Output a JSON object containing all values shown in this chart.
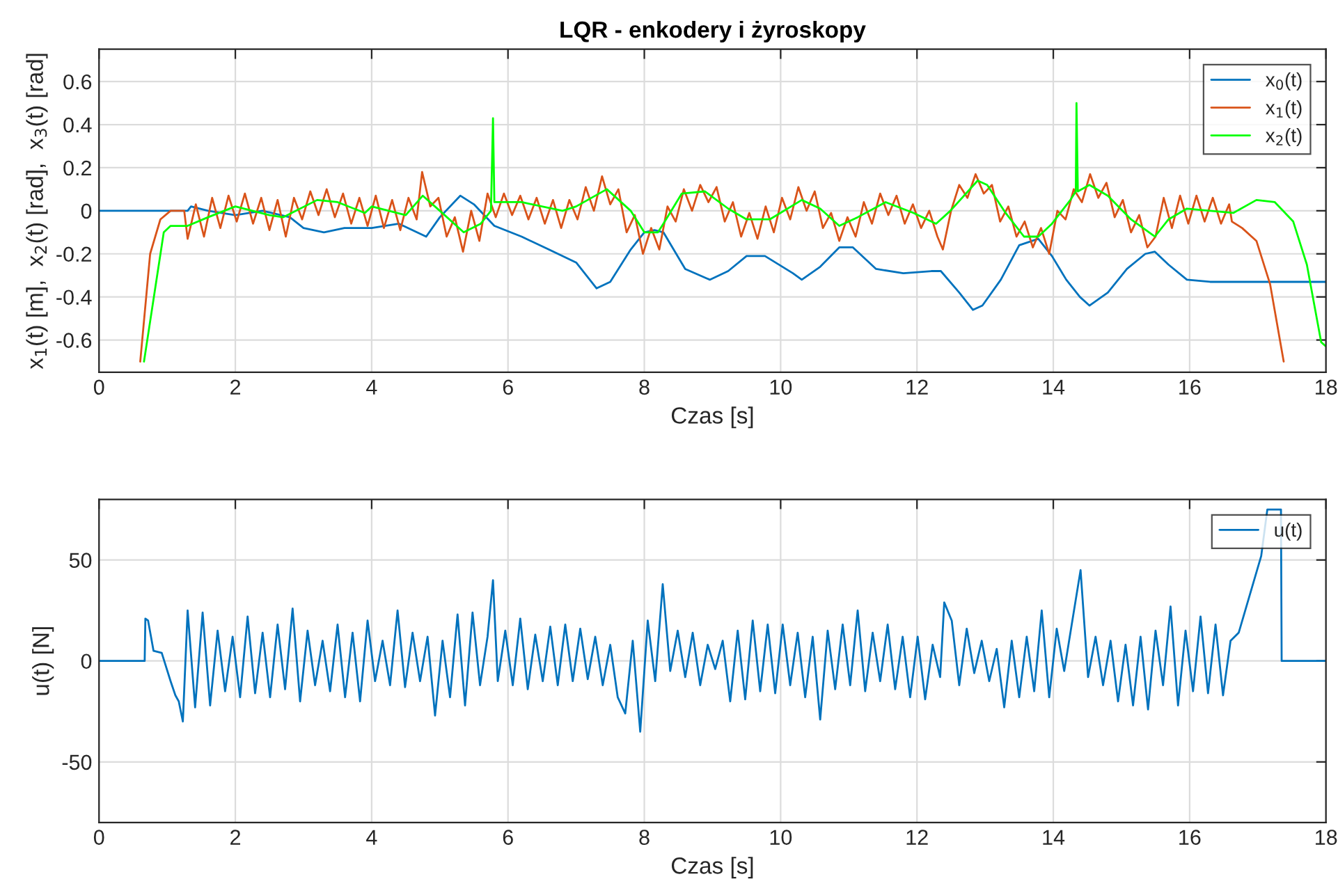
{
  "chart_data": [
    {
      "type": "line",
      "title": "LQR - enkodery i żyroskopy",
      "xlabel": "Czas [s]",
      "ylabel": "x$_{1}$(t) [m],  x$_{2}$(t) [rad],  x$_{3}$(t) [rad]",
      "xlim": [
        0,
        18
      ],
      "xticks": [
        0,
        2,
        4,
        6,
        8,
        10,
        12,
        14,
        16,
        18
      ],
      "ylim": [
        -0.75,
        0.75
      ],
      "yticks": [
        -0.6,
        -0.4,
        -0.2,
        0,
        0.2,
        0.4,
        0.6
      ],
      "grid": true,
      "legend": "top right",
      "series": [
        {
          "name": "x$_{0}$(t)",
          "color": "#0072bd",
          "x": [
            0,
            1.3,
            1.35,
            1.6,
            2.0,
            2.4,
            2.8,
            3.0,
            3.3,
            3.6,
            4.0,
            4.4,
            4.8,
            5.0,
            5.3,
            5.5,
            5.8,
            6.2,
            6.6,
            7.0,
            7.3,
            7.5,
            7.8,
            8.0,
            8.15,
            8.28,
            8.6,
            8.96,
            9.23,
            9.5,
            9.77,
            10.18,
            10.31,
            10.58,
            10.86,
            11.06,
            11.4,
            11.8,
            12.21,
            12.35,
            12.62,
            12.82,
            12.96,
            13.23,
            13.5,
            13.78,
            13.98,
            14.19,
            14.39,
            14.53,
            14.8,
            15.08,
            15.35,
            15.49,
            15.69,
            15.96,
            16.3,
            16.5,
            18
          ],
          "values": [
            0,
            0,
            0.02,
            0.0,
            -0.02,
            0.0,
            -0.03,
            -0.08,
            -0.1,
            -0.08,
            -0.08,
            -0.06,
            -0.12,
            -0.03,
            0.07,
            0.03,
            -0.07,
            -0.12,
            -0.18,
            -0.24,
            -0.36,
            -0.33,
            -0.18,
            -0.1,
            -0.09,
            -0.1,
            -0.27,
            -0.32,
            -0.28,
            -0.21,
            -0.21,
            -0.29,
            -0.32,
            -0.26,
            -0.17,
            -0.17,
            -0.27,
            -0.29,
            -0.28,
            -0.28,
            -0.38,
            -0.46,
            -0.44,
            -0.32,
            -0.16,
            -0.13,
            -0.21,
            -0.32,
            -0.4,
            -0.44,
            -0.38,
            -0.27,
            -0.2,
            -0.19,
            -0.25,
            -0.32,
            -0.33,
            -0.33,
            -0.33
          ]
        },
        {
          "name": "x$_{1}$(t)",
          "color": "#d95319",
          "x": [
            0.605,
            0.75,
            0.9,
            1.05,
            1.25,
            1.3,
            1.42,
            1.54,
            1.66,
            1.78,
            1.9,
            2.02,
            2.14,
            2.26,
            2.38,
            2.5,
            2.62,
            2.74,
            2.86,
            2.98,
            3.1,
            3.22,
            3.34,
            3.46,
            3.58,
            3.7,
            3.82,
            3.94,
            4.06,
            4.18,
            4.3,
            4.42,
            4.54,
            4.66,
            4.74,
            4.86,
            4.98,
            5.1,
            5.22,
            5.34,
            5.46,
            5.58,
            5.7,
            5.82,
            5.94,
            6.06,
            6.18,
            6.3,
            6.42,
            6.54,
            6.66,
            6.78,
            6.9,
            7.02,
            7.14,
            7.26,
            7.38,
            7.5,
            7.62,
            7.74,
            7.86,
            7.98,
            8.1,
            8.22,
            8.34,
            8.46,
            8.58,
            8.7,
            8.82,
            8.94,
            9.06,
            9.18,
            9.3,
            9.42,
            9.54,
            9.66,
            9.78,
            9.9,
            10.02,
            10.14,
            10.26,
            10.38,
            10.5,
            10.62,
            10.74,
            10.86,
            10.98,
            11.1,
            11.22,
            11.34,
            11.46,
            11.58,
            11.7,
            11.82,
            11.94,
            12.06,
            12.18,
            12.3,
            12.38,
            12.5,
            12.62,
            12.74,
            12.86,
            12.98,
            13.1,
            13.22,
            13.34,
            13.46,
            13.58,
            13.7,
            13.82,
            13.94,
            14.06,
            14.18,
            14.3,
            14.42,
            14.54,
            14.66,
            14.78,
            14.9,
            15.02,
            15.14,
            15.26,
            15.38,
            15.5,
            15.62,
            15.74,
            15.86,
            15.98,
            16.1,
            16.22,
            16.34,
            16.46,
            16.58,
            16.62,
            16.77,
            16.98,
            17.18,
            17.38
          ],
          "values": [
            -0.7,
            -0.2,
            -0.04,
            0.0,
            0.0,
            -0.13,
            0.03,
            -0.12,
            0.06,
            -0.08,
            0.07,
            -0.05,
            0.08,
            -0.06,
            0.06,
            -0.09,
            0.05,
            -0.12,
            0.06,
            -0.04,
            0.09,
            -0.02,
            0.1,
            -0.03,
            0.08,
            -0.06,
            0.06,
            -0.07,
            0.07,
            -0.08,
            0.05,
            -0.09,
            0.06,
            -0.04,
            0.18,
            0.02,
            0.06,
            -0.12,
            -0.03,
            -0.19,
            0.0,
            -0.14,
            0.08,
            -0.03,
            0.08,
            -0.02,
            0.07,
            -0.04,
            0.06,
            -0.06,
            0.05,
            -0.08,
            0.05,
            -0.04,
            0.11,
            0.0,
            0.16,
            0.03,
            0.1,
            -0.1,
            -0.02,
            -0.2,
            -0.08,
            -0.18,
            0.02,
            -0.05,
            0.1,
            0.0,
            0.12,
            0.04,
            0.11,
            -0.05,
            0.04,
            -0.12,
            -0.01,
            -0.13,
            0.02,
            -0.1,
            0.06,
            -0.04,
            0.11,
            0.0,
            0.09,
            -0.08,
            -0.01,
            -0.14,
            -0.03,
            -0.12,
            0.04,
            -0.06,
            0.08,
            -0.02,
            0.07,
            -0.06,
            0.03,
            -0.08,
            0.0,
            -0.12,
            -0.18,
            0.0,
            0.12,
            0.06,
            0.17,
            0.08,
            0.12,
            -0.05,
            0.02,
            -0.12,
            -0.05,
            -0.17,
            -0.08,
            -0.2,
            0.0,
            -0.04,
            0.1,
            0.04,
            0.17,
            0.06,
            0.13,
            -0.03,
            0.05,
            -0.1,
            -0.02,
            -0.17,
            -0.12,
            0.06,
            -0.08,
            0.07,
            -0.06,
            0.07,
            -0.05,
            0.06,
            -0.06,
            0.03,
            -0.05,
            -0.08,
            -0.14,
            -0.34,
            -0.7
          ]
        },
        {
          "name": "x$_{2}$(t)",
          "color": "#00ff00",
          "x": [
            0.66,
            0.95,
            1.05,
            1.3,
            1.6,
            2.0,
            2.5,
            2.7,
            3.2,
            3.5,
            3.9,
            4.0,
            4.5,
            4.75,
            5.0,
            5.35,
            5.6,
            5.75,
            5.78,
            5.8,
            6.2,
            6.8,
            7.0,
            7.45,
            7.8,
            8.0,
            8.2,
            8.3,
            8.55,
            8.89,
            9.23,
            9.5,
            9.84,
            10.31,
            10.58,
            10.86,
            11.13,
            11.54,
            11.95,
            12.28,
            12.49,
            12.89,
            13.03,
            13.3,
            13.57,
            13.78,
            13.98,
            14.25,
            14.33,
            14.34,
            14.36,
            14.53,
            14.8,
            15.14,
            15.49,
            15.69,
            15.96,
            16.3,
            16.64,
            16.98,
            17.25,
            17.52,
            17.72,
            17.93,
            18
          ],
          "values": [
            -0.7,
            -0.1,
            -0.07,
            -0.07,
            -0.03,
            0.02,
            -0.02,
            -0.03,
            0.05,
            0.04,
            -0.01,
            0.02,
            -0.02,
            0.07,
            0.0,
            -0.1,
            -0.06,
            0.0,
            0.43,
            0.04,
            0.04,
            0.0,
            0.02,
            0.1,
            0.0,
            -0.1,
            -0.1,
            -0.05,
            0.08,
            0.09,
            0.01,
            -0.04,
            -0.04,
            0.05,
            0.01,
            -0.07,
            -0.03,
            0.04,
            -0.01,
            -0.06,
            0.0,
            0.14,
            0.12,
            -0.01,
            -0.12,
            -0.12,
            -0.06,
            0.05,
            0.09,
            0.5,
            0.09,
            0.12,
            0.07,
            -0.04,
            -0.12,
            -0.04,
            0.01,
            0.0,
            -0.01,
            0.05,
            0.04,
            -0.05,
            -0.25,
            -0.61,
            -0.63
          ]
        }
      ]
    },
    {
      "type": "line",
      "xlabel": "Czas [s]",
      "ylabel": "u(t) [N]",
      "xlim": [
        0,
        18
      ],
      "xticks": [
        0,
        2,
        4,
        6,
        8,
        10,
        12,
        14,
        16,
        18
      ],
      "ylim": [
        -80,
        80
      ],
      "yticks": [
        -50,
        0,
        50
      ],
      "grid": true,
      "legend": "top right",
      "series": [
        {
          "name": "u(t)",
          "color": "#0072bd",
          "x": [
            0,
            0.67,
            0.68,
            0.72,
            0.8,
            0.92,
            1.05,
            1.12,
            1.17,
            1.23,
            1.3,
            1.41,
            1.52,
            1.63,
            1.74,
            1.85,
            1.96,
            2.07,
            2.18,
            2.29,
            2.4,
            2.51,
            2.62,
            2.73,
            2.84,
            2.95,
            3.06,
            3.17,
            3.28,
            3.39,
            3.5,
            3.61,
            3.72,
            3.83,
            3.94,
            4.05,
            4.16,
            4.27,
            4.38,
            4.49,
            4.6,
            4.71,
            4.82,
            4.93,
            5.04,
            5.15,
            5.26,
            5.37,
            5.48,
            5.59,
            5.7,
            5.78,
            5.85,
            5.96,
            6.07,
            6.18,
            6.29,
            6.4,
            6.51,
            6.62,
            6.73,
            6.84,
            6.95,
            7.06,
            7.17,
            7.28,
            7.39,
            7.5,
            7.61,
            7.72,
            7.83,
            7.94,
            8.05,
            8.16,
            8.27,
            8.38,
            8.49,
            8.6,
            8.71,
            8.82,
            8.93,
            9.04,
            9.15,
            9.26,
            9.37,
            9.48,
            9.59,
            9.7,
            9.81,
            9.92,
            10.03,
            10.14,
            10.25,
            10.36,
            10.47,
            10.58,
            10.69,
            10.8,
            10.91,
            11.02,
            11.13,
            11.24,
            11.35,
            11.46,
            11.57,
            11.68,
            11.79,
            11.9,
            12.01,
            12.12,
            12.23,
            12.34,
            12.4,
            12.51,
            12.62,
            12.73,
            12.84,
            12.95,
            13.06,
            13.17,
            13.28,
            13.39,
            13.5,
            13.61,
            13.72,
            13.83,
            13.94,
            14.05,
            14.16,
            14.27,
            14.4,
            14.51,
            14.62,
            14.73,
            14.84,
            14.95,
            15.06,
            15.17,
            15.28,
            15.39,
            15.5,
            15.61,
            15.72,
            15.83,
            15.94,
            16.05,
            16.16,
            16.27,
            16.38,
            16.49,
            16.6,
            16.72,
            17.05,
            17.14,
            17.2,
            17.34,
            17.35,
            18
          ],
          "values": [
            0,
            0,
            21,
            20,
            5,
            4,
            -10,
            -17,
            -20,
            -30,
            25,
            -23,
            24,
            -22,
            15,
            -15,
            12,
            -18,
            22,
            -16,
            14,
            -18,
            18,
            -14,
            26,
            -20,
            15,
            -12,
            10,
            -15,
            18,
            -18,
            14,
            -20,
            20,
            -10,
            10,
            -12,
            25,
            -13,
            14,
            -10,
            12,
            -27,
            10,
            -18,
            23,
            -22,
            24,
            -12,
            12,
            40,
            -10,
            15,
            -12,
            21,
            -14,
            13,
            -10,
            17,
            -12,
            18,
            -10,
            16,
            -9,
            12,
            -12,
            8,
            -18,
            -26,
            10,
            -35,
            20,
            -10,
            38,
            -5,
            15,
            -8,
            14,
            -12,
            8,
            -4,
            10,
            -20,
            15,
            -19,
            20,
            -15,
            18,
            -16,
            18,
            -12,
            14,
            -18,
            12,
            -29,
            15,
            -14,
            18,
            -12,
            25,
            -15,
            14,
            -10,
            18,
            -14,
            12,
            -18,
            12,
            -19,
            8,
            -8,
            29,
            20,
            -12,
            16,
            -6,
            10,
            -10,
            6,
            -23,
            10,
            -18,
            12,
            -15,
            25,
            -18,
            16,
            -5,
            18,
            45,
            -8,
            12,
            -12,
            10,
            -20,
            8,
            -22,
            12,
            -24,
            15,
            -12,
            27,
            -22,
            15,
            -15,
            22,
            -16,
            18,
            -17,
            10,
            14,
            52,
            75,
            null,
            75,
            0,
            0
          ]
        }
      ]
    }
  ]
}
